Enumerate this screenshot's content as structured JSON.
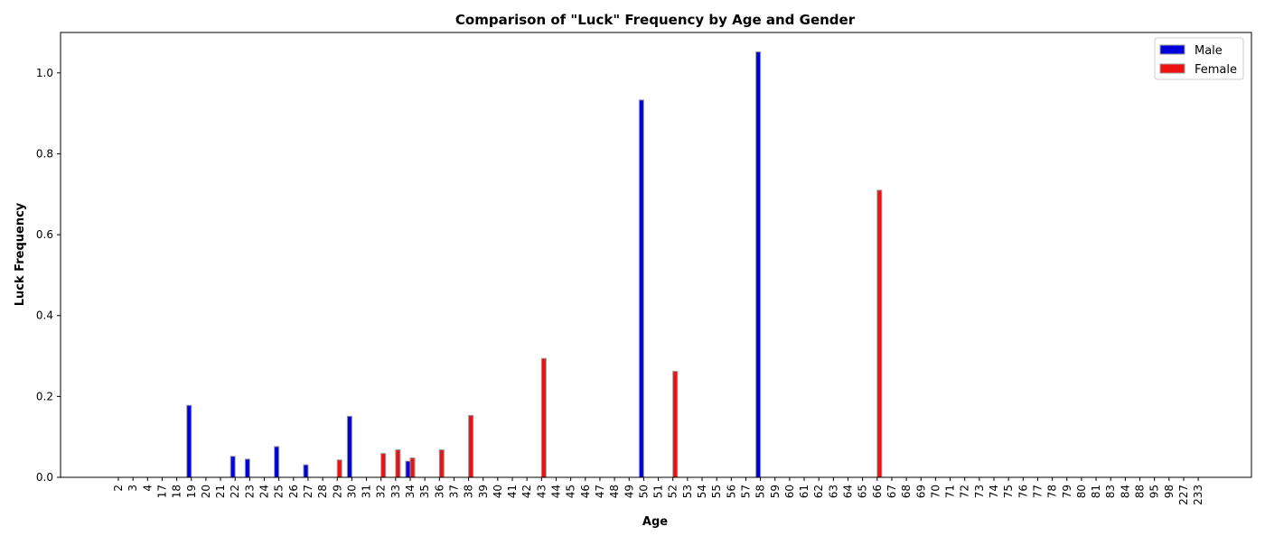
{
  "chart_data": {
    "type": "bar",
    "title": "Comparison of \"Luck\" Frequency by Age and Gender",
    "xlabel": "Age",
    "ylabel": "Luck Frequency",
    "ylim": [
      0,
      1.1
    ],
    "yticks": [
      "0.0",
      "0.2",
      "0.4",
      "0.6",
      "0.8",
      "1.0"
    ],
    "grid": false,
    "legend_position": "top-right",
    "categories": [
      "2",
      "3",
      "4",
      "17",
      "18",
      "19",
      "20",
      "21",
      "22",
      "23",
      "24",
      "25",
      "26",
      "27",
      "28",
      "29",
      "30",
      "31",
      "32",
      "33",
      "34",
      "35",
      "36",
      "37",
      "38",
      "39",
      "40",
      "41",
      "42",
      "43",
      "44",
      "45",
      "46",
      "47",
      "48",
      "49",
      "50",
      "51",
      "52",
      "53",
      "54",
      "55",
      "56",
      "57",
      "58",
      "59",
      "60",
      "61",
      "62",
      "63",
      "64",
      "65",
      "66",
      "67",
      "68",
      "69",
      "70",
      "71",
      "72",
      "73",
      "74",
      "75",
      "76",
      "77",
      "78",
      "79",
      "80",
      "81",
      "83",
      "84",
      "88",
      "95",
      "98",
      "227",
      "233"
    ],
    "series": [
      {
        "name": "Male",
        "color": "#0000dd",
        "values": [
          0,
          0,
          0,
          0,
          0,
          0.178,
          0,
          0,
          0.052,
          0.045,
          0,
          0.076,
          0,
          0.031,
          0,
          0,
          0.151,
          0,
          0,
          0,
          0.04,
          0,
          0,
          0,
          0,
          0,
          0,
          0,
          0,
          0,
          0,
          0,
          0,
          0,
          0,
          0,
          0.933,
          0,
          0,
          0,
          0,
          0,
          0,
          0,
          1.052,
          0,
          0,
          0,
          0,
          0,
          0,
          0,
          0,
          0,
          0,
          0,
          0,
          0,
          0,
          0,
          0,
          0,
          0,
          0,
          0,
          0,
          0,
          0,
          0,
          0,
          0,
          0,
          0,
          0,
          0
        ]
      },
      {
        "name": "Female",
        "color": "#ee1111",
        "values": [
          0,
          0,
          0,
          0,
          0,
          0,
          0,
          0,
          0,
          0,
          0,
          0,
          0,
          0,
          0,
          0.043,
          0,
          0,
          0.059,
          0.068,
          0.048,
          0,
          0.068,
          0,
          0.153,
          0,
          0,
          0,
          0,
          0.294,
          0,
          0,
          0,
          0,
          0,
          0,
          0,
          0,
          0.262,
          0,
          0,
          0,
          0,
          0,
          0,
          0,
          0,
          0,
          0,
          0,
          0,
          0,
          0.71,
          0,
          0,
          0,
          0,
          0,
          0,
          0,
          0,
          0,
          0,
          0,
          0,
          0,
          0,
          0,
          0,
          0,
          0,
          0,
          0,
          0,
          0
        ]
      }
    ]
  }
}
